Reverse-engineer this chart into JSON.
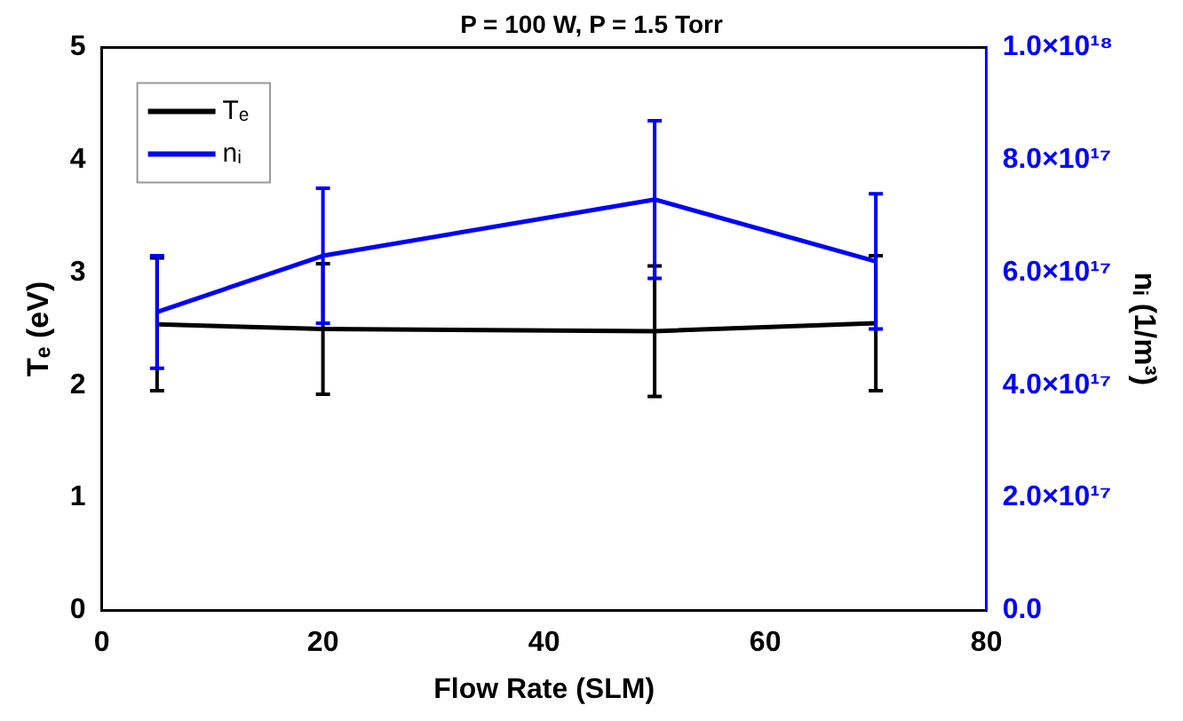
{
  "chart_data": {
    "type": "line",
    "title": "P = 100 W, P = 1.5 Torr",
    "xlabel": "Flow Rate (SLM)",
    "ylabel": "Tₑ (eV)",
    "y2label": "nᵢ (1/m³)",
    "x": [
      5,
      20,
      50,
      70
    ],
    "series": [
      {
        "name": "Tₑ",
        "color": "#000000",
        "values": [
          2.54,
          2.5,
          2.48,
          2.55
        ],
        "errors": [
          0.59,
          0.58,
          0.58,
          0.6
        ]
      },
      {
        "name": "nᵢ",
        "color": "#0000ff",
        "axis": "y2",
        "values": [
          5.3e+17,
          6.3e+17,
          7.3e+17,
          6.2e+17
        ],
        "errors": [
          1e+17,
          1.2e+17,
          1.4e+17,
          1.2e+17
        ]
      }
    ],
    "xlim": [
      0,
      80
    ],
    "xticks": [
      0,
      20,
      40,
      60,
      80
    ],
    "ylim": [
      0,
      5
    ],
    "yticks": [
      0,
      1,
      2,
      3,
      4,
      5
    ],
    "y2lim": [
      0,
      1e+18
    ],
    "y2ticks": [
      {
        "value": 0,
        "label": "0.0"
      },
      {
        "value": 2e+17,
        "label": "2.0×10¹⁷"
      },
      {
        "value": 4e+17,
        "label": "4.0×10¹⁷"
      },
      {
        "value": 6e+17,
        "label": "6.0×10¹⁷"
      },
      {
        "value": 8e+17,
        "label": "8.0×10¹⁷"
      },
      {
        "value": 1e+18,
        "label": "1.0×10¹⁸"
      }
    ],
    "legend": "top left",
    "marker": "none",
    "line_style": "solid"
  }
}
